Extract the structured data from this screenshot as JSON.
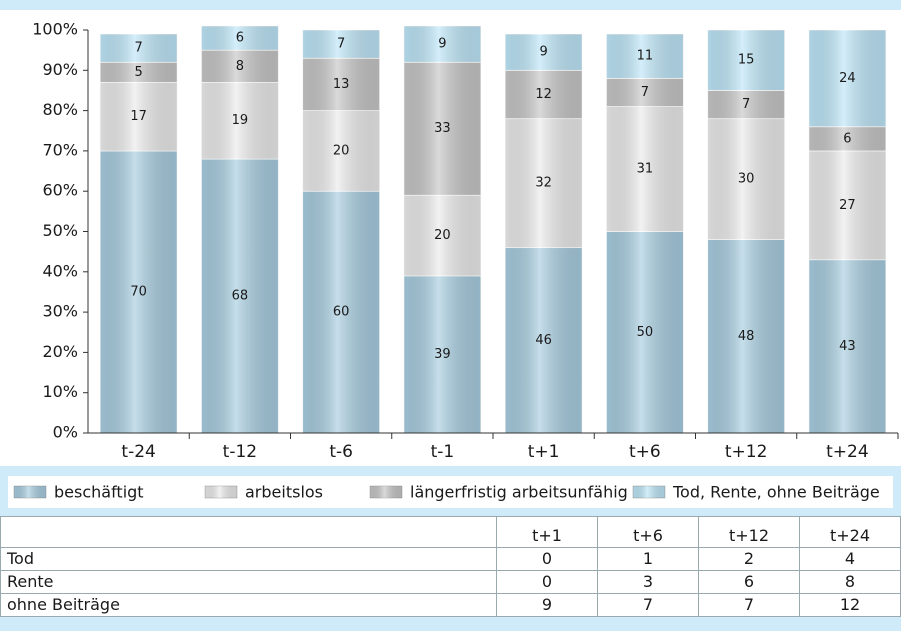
{
  "chart_data": {
    "type": "stacked_bar",
    "categories": [
      "t-24",
      "t-12",
      "t-6",
      "t-1",
      "t+1",
      "t+6",
      "t+12",
      "t+24"
    ],
    "series": [
      {
        "name": "beschäftigt",
        "color": "#a7cde0",
        "values": [
          70,
          68,
          60,
          39,
          46,
          50,
          48,
          43
        ]
      },
      {
        "name": "arbeitslos",
        "color": "#ebebeb",
        "values": [
          17,
          19,
          20,
          20,
          32,
          31,
          30,
          27
        ]
      },
      {
        "name": "längerfristig arbeitsunfähig",
        "color": "#c6c6c6",
        "values": [
          5,
          8,
          13,
          33,
          12,
          7,
          7,
          6
        ]
      },
      {
        "name": "Tod, Rente, ohne Beiträge",
        "color": "#bde6f8",
        "values": [
          7,
          6,
          7,
          9,
          9,
          11,
          15,
          24
        ]
      }
    ],
    "ylim": [
      0,
      100
    ],
    "yticks": [
      {
        "value": 0,
        "label": "0%"
      },
      {
        "value": 10,
        "label": "10%"
      },
      {
        "value": 20,
        "label": "20%"
      },
      {
        "value": 30,
        "label": "30%"
      },
      {
        "value": 40,
        "label": "40%"
      },
      {
        "value": 50,
        "label": "50%"
      },
      {
        "value": 60,
        "label": "60%"
      },
      {
        "value": 70,
        "label": "70%"
      },
      {
        "value": 80,
        "label": "80%"
      },
      {
        "value": 90,
        "label": "90%"
      },
      {
        "value": 100,
        "label": "100%"
      }
    ],
    "legend": "bottom"
  },
  "table": {
    "columns": [
      "t+1",
      "t+6",
      "t+12",
      "t+24"
    ],
    "rows": [
      {
        "label": "Tod",
        "values": [
          0,
          1,
          2,
          4
        ]
      },
      {
        "label": "Rente",
        "values": [
          0,
          3,
          6,
          8
        ]
      },
      {
        "label": "ohne Beiträge",
        "values": [
          9,
          7,
          7,
          12
        ]
      }
    ]
  }
}
